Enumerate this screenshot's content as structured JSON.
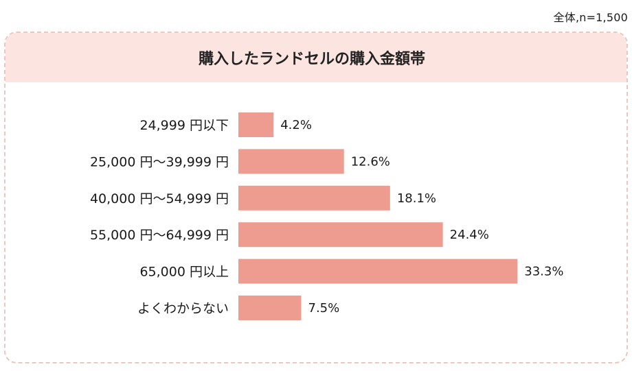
{
  "note": "全体,n=1,500",
  "chart_data": {
    "type": "bar",
    "orientation": "horizontal",
    "title": "購入したランドセルの購入金額帯",
    "categories": [
      "24,999 円以下",
      "25,000 円〜39,999 円",
      "40,000 円〜54,999 円",
      "55,000 円〜64,999 円",
      "65,000 円以上",
      "よくわからない"
    ],
    "values": [
      4.2,
      12.6,
      18.1,
      24.4,
      33.3,
      7.5
    ],
    "value_labels": [
      "4.2%",
      "12.6%",
      "18.1%",
      "24.4%",
      "33.3%",
      "7.5%"
    ],
    "unit": "%",
    "bar_color": "#ee9c8f",
    "header_color": "#fce4e0",
    "grid": false,
    "legend": "none"
  }
}
